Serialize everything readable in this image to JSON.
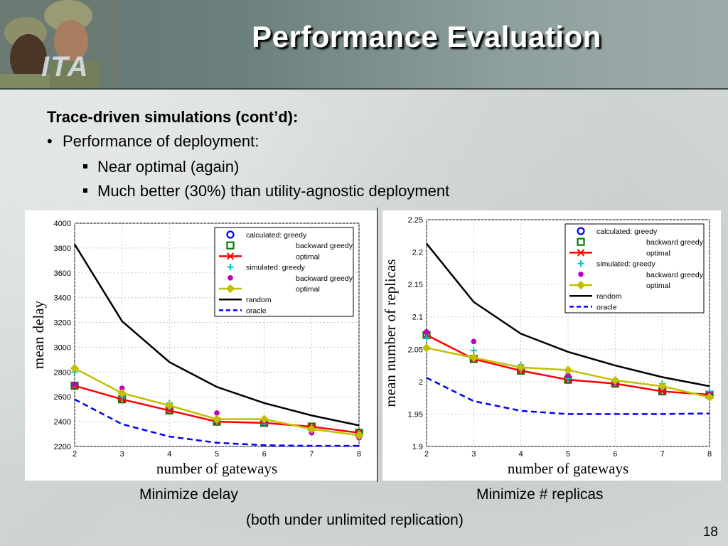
{
  "slide": {
    "title": "Performance Evaluation",
    "logo_text": "ITA",
    "heading": "Trace-driven simulations (cont’d):",
    "bullet": "Performance of deployment:",
    "bullet_marker": "•",
    "sub_bullets": [
      "Near optimal (again)",
      "Much better (30%) than utility-agnostic deployment"
    ],
    "caption_left": "Minimize delay",
    "caption_right": "Minimize # replicas",
    "caption_bottom": "(both under unlimited replication)",
    "page_number": "18"
  },
  "colors": {
    "header_start": "#5f7470",
    "header_end": "#9dacaa",
    "calculated_greedy": "#0000ff",
    "backward_greedy_calc": "#008000",
    "optimal_calc": "#ff0000",
    "simulated_greedy": "#00c0c0",
    "backward_greedy_sim": "#c000c0",
    "optimal_sim": "#c0c000",
    "random": "#000000",
    "oracle": "#0000ff"
  },
  "chart_data": [
    {
      "type": "line",
      "xlabel": "number of gateways",
      "ylabel": "mean delay",
      "x": [
        2,
        3,
        4,
        5,
        6,
        7,
        8
      ],
      "xlim": [
        2,
        8
      ],
      "ylim": [
        2200,
        4000
      ],
      "yticks": [
        2200,
        2400,
        2600,
        2800,
        3000,
        3200,
        3400,
        3600,
        3800,
        4000
      ],
      "grid": true,
      "legend_position": "top-right",
      "series": [
        {
          "name": "calculated: greedy",
          "marker": "circle",
          "line": false,
          "color": "#0000ff",
          "values": [
            2690,
            2580,
            2490,
            2400,
            2390,
            2360,
            2310
          ]
        },
        {
          "name": "backward greedy",
          "marker": "square",
          "line": false,
          "color": "#008000",
          "values": [
            2690,
            2580,
            2490,
            2400,
            2390,
            2360,
            2310
          ]
        },
        {
          "name": "optimal",
          "marker": "x",
          "line": true,
          "color": "#ff0000",
          "values": [
            2690,
            2580,
            2490,
            2400,
            2390,
            2360,
            2310
          ]
        },
        {
          "name": "simulated: greedy",
          "marker": "plus",
          "line": false,
          "color": "#00c0c0",
          "values": [
            2800,
            2600,
            2550,
            2400,
            2380,
            2340,
            2280
          ]
        },
        {
          "name": "backward greedy",
          "marker": "dot",
          "line": false,
          "color": "#c000c0",
          "values": [
            2700,
            2670,
            2510,
            2470,
            2400,
            2310,
            2270
          ]
        },
        {
          "name": "optimal",
          "marker": "diamond",
          "line": true,
          "color": "#c0c000",
          "values": [
            2830,
            2630,
            2530,
            2420,
            2420,
            2340,
            2290
          ]
        },
        {
          "name": "random",
          "marker": "none",
          "line": true,
          "dash": false,
          "color": "#000000",
          "values": [
            3830,
            3210,
            2880,
            2680,
            2550,
            2450,
            2370
          ]
        },
        {
          "name": "oracle",
          "marker": "none",
          "line": true,
          "dash": true,
          "color": "#0000ff",
          "values": [
            2580,
            2380,
            2280,
            2230,
            2210,
            2205,
            2205
          ]
        }
      ]
    },
    {
      "type": "line",
      "xlabel": "number of gateways",
      "ylabel": "mean number of replicas",
      "x": [
        2,
        3,
        4,
        5,
        6,
        7,
        8
      ],
      "xlim": [
        2,
        8
      ],
      "ylim": [
        1.9,
        2.25
      ],
      "yticks": [
        1.9,
        1.95,
        2,
        2.05,
        2.1,
        2.15,
        2.2,
        2.25
      ],
      "grid": true,
      "legend_position": "top-right",
      "series": [
        {
          "name": "calculated: greedy",
          "marker": "circle",
          "line": false,
          "color": "#0000ff",
          "values": [
            2.072,
            2.035,
            2.017,
            2.003,
            1.997,
            1.985,
            1.98
          ]
        },
        {
          "name": "backward greedy",
          "marker": "square",
          "line": false,
          "color": "#008000",
          "values": [
            2.072,
            2.035,
            2.017,
            2.003,
            1.997,
            1.985,
            1.98
          ]
        },
        {
          "name": "optimal",
          "marker": "x",
          "line": true,
          "color": "#ff0000",
          "values": [
            2.072,
            2.035,
            2.017,
            2.003,
            1.997,
            1.985,
            1.98
          ]
        },
        {
          "name": "simulated: greedy",
          "marker": "plus",
          "line": false,
          "color": "#00c0c0",
          "values": [
            2.068,
            2.048,
            2.026,
            2.005,
            2.0,
            1.997,
            1.985
          ]
        },
        {
          "name": "backward greedy",
          "marker": "dot",
          "line": false,
          "color": "#c000c0",
          "values": [
            2.077,
            2.062,
            2.02,
            2.01,
            1.998,
            1.99,
            1.98
          ]
        },
        {
          "name": "optimal",
          "marker": "diamond",
          "line": true,
          "color": "#c0c000",
          "values": [
            2.052,
            2.037,
            2.022,
            2.018,
            2.002,
            1.993,
            1.976
          ]
        },
        {
          "name": "random",
          "marker": "none",
          "line": true,
          "dash": false,
          "color": "#000000",
          "values": [
            2.213,
            2.123,
            2.074,
            2.046,
            2.025,
            2.007,
            1.993
          ]
        },
        {
          "name": "oracle",
          "marker": "none",
          "line": true,
          "dash": true,
          "color": "#0000ff",
          "values": [
            2.006,
            1.97,
            1.955,
            1.95,
            1.95,
            1.95,
            1.951
          ]
        }
      ]
    }
  ]
}
